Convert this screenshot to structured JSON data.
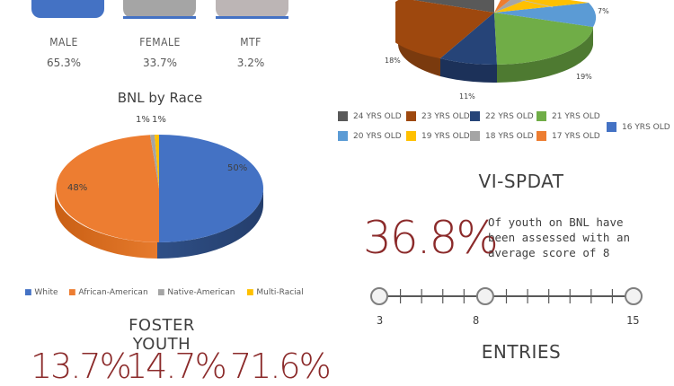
{
  "gender": {
    "items": [
      {
        "label": "MALE",
        "pct": "65.3%"
      },
      {
        "label": "FEMALE",
        "pct": "33.7%"
      },
      {
        "label": "MTF",
        "pct": "3.2%"
      }
    ]
  },
  "race": {
    "title": "BNL by Race",
    "slice_labels": [
      "50%",
      "48%",
      "1%",
      "1%"
    ],
    "legend": [
      "White",
      "African-American",
      "Native-American",
      "Multi-Racial"
    ]
  },
  "age": {
    "slice_labels": [
      "7%",
      "18%",
      "11%",
      "19%"
    ],
    "legend": [
      "24 YRS OLD",
      "23 YRS OLD",
      "22 YRS OLD",
      "21 YRS OLD",
      "20 YRS OLD",
      "19 YRS OLD",
      "18 YRS OLD",
      "17 YRS OLD",
      "16 YRS OLD"
    ]
  },
  "vispdat": {
    "title": "VI-SPDAT",
    "big_pct": "36.8%",
    "text": [
      "Of youth on BNL have",
      "been assessed with an",
      "average score of 8"
    ],
    "scale_labels": [
      "3",
      "8",
      "15"
    ],
    "scale": {
      "min": 3,
      "max": 15,
      "value": 8
    }
  },
  "foster": {
    "title": "FOSTER YOUTH",
    "values": [
      "13.7%",
      "14.7%",
      "71.6%"
    ]
  },
  "entries": {
    "title": "ENTRIES"
  },
  "chart_data": [
    {
      "type": "bar",
      "categories": [
        "MALE",
        "FEMALE",
        "MTF"
      ],
      "values": [
        65.3,
        33.7,
        3.2
      ]
    },
    {
      "type": "pie",
      "title": "BNL by Race",
      "labels": [
        "White",
        "African-American",
        "Native-American",
        "Multi-Racial"
      ],
      "values": [
        50,
        48,
        1,
        1
      ],
      "colors": [
        "#4472c4",
        "#ed7d31",
        "#a5a5a5",
        "#ffc000"
      ],
      "legend": "bottom"
    },
    {
      "type": "pie",
      "labels": [
        "24 YRS OLD",
        "23 YRS OLD",
        "22 YRS OLD",
        "21 YRS OLD",
        "20 YRS OLD",
        "19 YRS OLD",
        "18 YRS OLD",
        "17 YRS OLD",
        "16 YRS OLD"
      ],
      "visible_values": {
        "20 YRS OLD": 7,
        "21 YRS OLD": 19,
        "22 YRS OLD": 11,
        "23 YRS OLD": 18
      },
      "colors": [
        "#595959",
        "#9e480e",
        "#264478",
        "#70ad47",
        "#5b9bd5",
        "#ffc000",
        "#a5a5a5",
        "#ed7d31",
        "#4472c4"
      ],
      "legend": "bottom"
    }
  ]
}
